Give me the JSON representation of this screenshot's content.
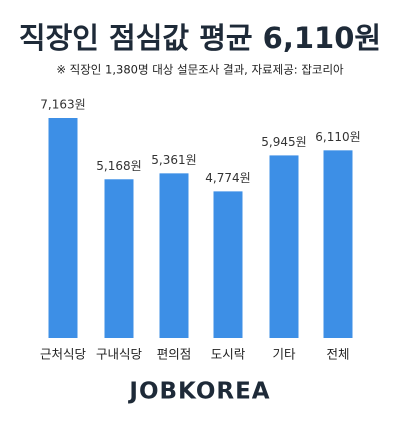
{
  "chart_data": {
    "type": "bar",
    "title": "직장인 점심값 평균 6,110원",
    "subtitle": "※ 직장인 1,380명 대상 설문조사 결과,  자료제공: 잡코리아",
    "categories": [
      "근처식당",
      "구내식당",
      "편의점",
      "도시락",
      "기타",
      "전체"
    ],
    "values": [
      7163,
      5168,
      5361,
      4774,
      5945,
      6110
    ],
    "value_labels": [
      "7,163원",
      "5,168원",
      "5,361원",
      "4,774원",
      "5,945원",
      "6,110원"
    ],
    "color": "#3d8fe6",
    "footer": "JOBKOREA"
  }
}
